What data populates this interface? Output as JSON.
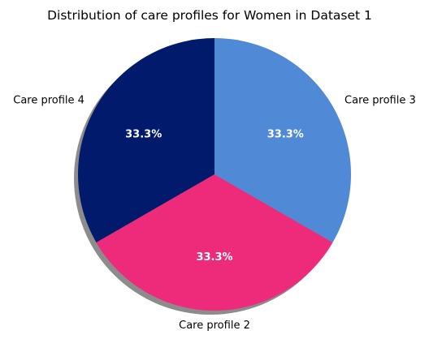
{
  "chart_data": {
    "type": "pie",
    "title": "Distribution of care profiles for Women in Dataset 1",
    "slices": [
      {
        "label": "Care profile 4",
        "value": 33.3,
        "pct_label": "33.3%",
        "color": "#021A6B"
      },
      {
        "label": "Care profile 2",
        "value": 33.3,
        "pct_label": "33.3%",
        "color": "#EE2A7B"
      },
      {
        "label": "Care profile 3",
        "value": 33.3,
        "pct_label": "33.3%",
        "color": "#5089D6"
      }
    ],
    "start_angle_deg": 90,
    "direction": "counterclockwise",
    "shadow": true
  }
}
